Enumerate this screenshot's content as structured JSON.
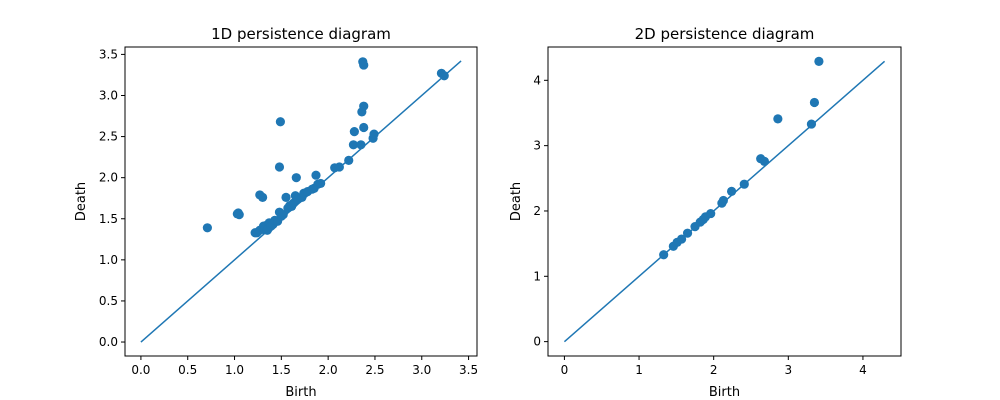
{
  "colors": {
    "series": "#1f77b4",
    "axes": "#000000",
    "background": "#ffffff"
  },
  "chart_data": [
    {
      "type": "scatter",
      "title": "1D persistence diagram",
      "xlabel": "Birth",
      "ylabel": "Death",
      "xlim": [
        -0.17,
        3.59
      ],
      "ylim": [
        -0.17,
        3.59
      ],
      "xticks": [
        "0.0",
        "0.5",
        "1.0",
        "1.5",
        "2.0",
        "2.5",
        "3.0",
        "3.5"
      ],
      "yticks": [
        "0.0",
        "0.5",
        "1.0",
        "1.5",
        "2.0",
        "2.5",
        "3.0",
        "3.5"
      ],
      "xtick_values": [
        0,
        0.5,
        1,
        1.5,
        2,
        2.5,
        3,
        3.5
      ],
      "ytick_values": [
        0,
        0.5,
        1,
        1.5,
        2,
        2.5,
        3,
        3.5
      ],
      "diagonal": [
        [
          0,
          0
        ],
        [
          3.42,
          3.42
        ]
      ],
      "grid": false,
      "points": [
        [
          0.71,
          1.39
        ],
        [
          1.03,
          1.56
        ],
        [
          1.04,
          1.57
        ],
        [
          1.05,
          1.55
        ],
        [
          1.22,
          1.33
        ],
        [
          1.24,
          1.33
        ],
        [
          1.27,
          1.36
        ],
        [
          1.27,
          1.79
        ],
        [
          1.3,
          1.76
        ],
        [
          1.31,
          1.41
        ],
        [
          1.32,
          1.37
        ],
        [
          1.34,
          1.42
        ],
        [
          1.35,
          1.36
        ],
        [
          1.36,
          1.38
        ],
        [
          1.37,
          1.45
        ],
        [
          1.39,
          1.41
        ],
        [
          1.41,
          1.43
        ],
        [
          1.43,
          1.48
        ],
        [
          1.46,
          1.47
        ],
        [
          1.48,
          1.58
        ],
        [
          1.48,
          2.13
        ],
        [
          1.49,
          2.68
        ],
        [
          1.5,
          1.53
        ],
        [
          1.52,
          1.55
        ],
        [
          1.55,
          1.76
        ],
        [
          1.57,
          1.63
        ],
        [
          1.59,
          1.66
        ],
        [
          1.61,
          1.65
        ],
        [
          1.63,
          1.69
        ],
        [
          1.65,
          1.78
        ],
        [
          1.66,
          2.0
        ],
        [
          1.68,
          1.74
        ],
        [
          1.72,
          1.76
        ],
        [
          1.74,
          1.81
        ],
        [
          1.78,
          1.83
        ],
        [
          1.83,
          1.86
        ],
        [
          1.85,
          1.87
        ],
        [
          1.87,
          2.03
        ],
        [
          1.89,
          1.92
        ],
        [
          1.92,
          1.93
        ],
        [
          2.07,
          2.12
        ],
        [
          2.12,
          2.13
        ],
        [
          2.22,
          2.21
        ],
        [
          2.27,
          2.4
        ],
        [
          2.28,
          2.56
        ],
        [
          2.35,
          2.4
        ],
        [
          2.36,
          2.8
        ],
        [
          2.37,
          3.41
        ],
        [
          2.38,
          2.87
        ],
        [
          2.38,
          3.37
        ],
        [
          2.38,
          2.61
        ],
        [
          2.48,
          2.48
        ],
        [
          2.49,
          2.53
        ],
        [
          3.21,
          3.27
        ],
        [
          3.24,
          3.24
        ]
      ]
    },
    {
      "type": "scatter",
      "title": "2D persistence diagram",
      "xlabel": "Birth",
      "ylabel": "Death",
      "xlim": [
        -0.22,
        4.51
      ],
      "ylim": [
        -0.22,
        4.51
      ],
      "xticks": [
        "0",
        "1",
        "2",
        "3",
        "4"
      ],
      "yticks": [
        "0",
        "1",
        "2",
        "3",
        "4"
      ],
      "xtick_values": [
        0,
        1,
        2,
        3,
        4
      ],
      "ytick_values": [
        0,
        1,
        2,
        3,
        4
      ],
      "diagonal": [
        [
          0,
          0
        ],
        [
          4.29,
          4.29
        ]
      ],
      "grid": false,
      "points": [
        [
          1.33,
          1.33
        ],
        [
          1.46,
          1.46
        ],
        [
          1.51,
          1.52
        ],
        [
          1.57,
          1.57
        ],
        [
          1.65,
          1.66
        ],
        [
          1.75,
          1.76
        ],
        [
          1.82,
          1.83
        ],
        [
          1.86,
          1.87
        ],
        [
          1.89,
          1.91
        ],
        [
          1.96,
          1.96
        ],
        [
          2.11,
          2.12
        ],
        [
          2.13,
          2.16
        ],
        [
          2.24,
          2.3
        ],
        [
          2.41,
          2.41
        ],
        [
          2.63,
          2.8
        ],
        [
          2.68,
          2.76
        ],
        [
          2.86,
          3.41
        ],
        [
          3.31,
          3.33
        ],
        [
          3.35,
          3.66
        ],
        [
          3.41,
          4.29
        ]
      ]
    }
  ]
}
